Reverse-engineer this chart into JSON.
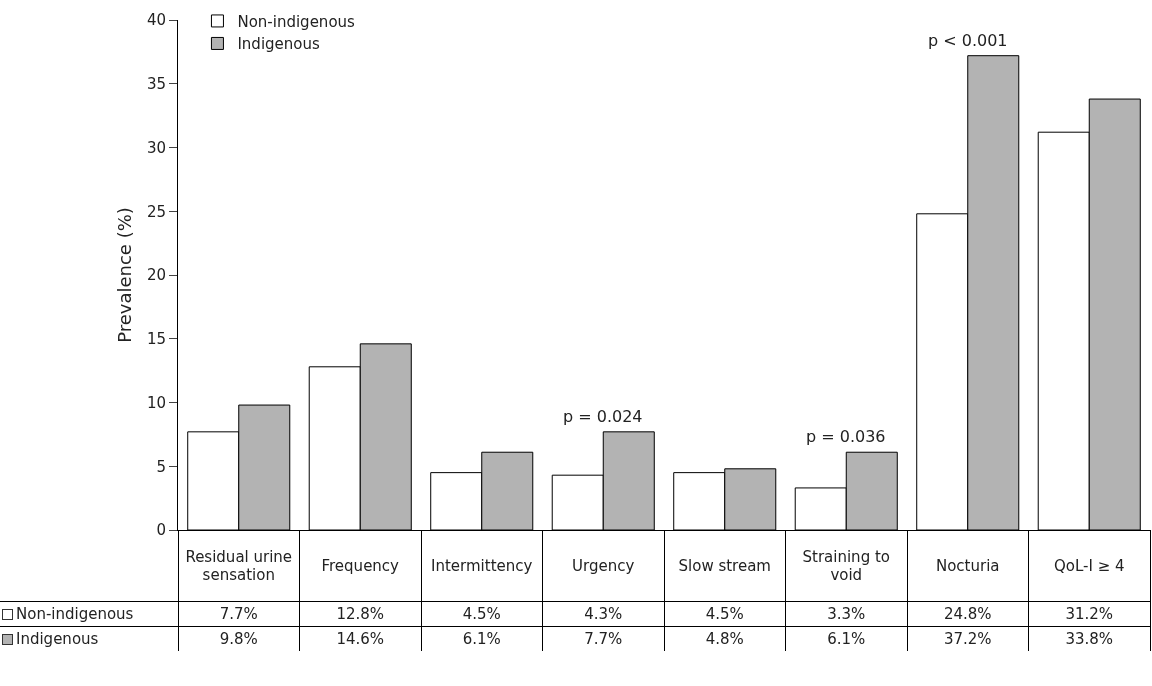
{
  "chart_data": {
    "type": "bar",
    "ylabel": "Prevalence (%)",
    "categories": [
      "Residual urine sensation",
      "Frequency",
      "Intermittency",
      "Urgency",
      "Slow stream",
      "Straining to void",
      "Nocturia",
      "QoL-I ≥ 4"
    ],
    "series": [
      {
        "name": "Non-indigenous",
        "color": "#ffffff",
        "values": [
          7.7,
          12.8,
          4.5,
          4.3,
          4.5,
          3.3,
          24.8,
          31.2
        ],
        "value_labels": [
          "7.7%",
          "12.8%",
          "4.5%",
          "4.3%",
          "4.5%",
          "3.3%",
          "24.8%",
          "31.2%"
        ]
      },
      {
        "name": "Indigenous",
        "color": "#b3b3b3",
        "values": [
          9.8,
          14.6,
          6.1,
          7.7,
          4.8,
          6.1,
          37.2,
          33.8
        ],
        "value_labels": [
          "9.8%",
          "14.6%",
          "6.1%",
          "7.7%",
          "4.8%",
          "6.1%",
          "37.2%",
          "33.8%"
        ]
      }
    ],
    "ylim": [
      0,
      40
    ],
    "yticks": [
      0,
      5,
      10,
      15,
      20,
      25,
      30,
      35,
      40
    ],
    "legend": "top left",
    "annotations": [
      {
        "text": "p = 0.024",
        "x": "Urgency",
        "y": 7.7
      },
      {
        "text": "p = 0.036",
        "x": "Straining to void",
        "y": 6.1
      },
      {
        "text": "p < 0.001",
        "x": "Nocturia",
        "y": 37.2
      }
    ]
  }
}
